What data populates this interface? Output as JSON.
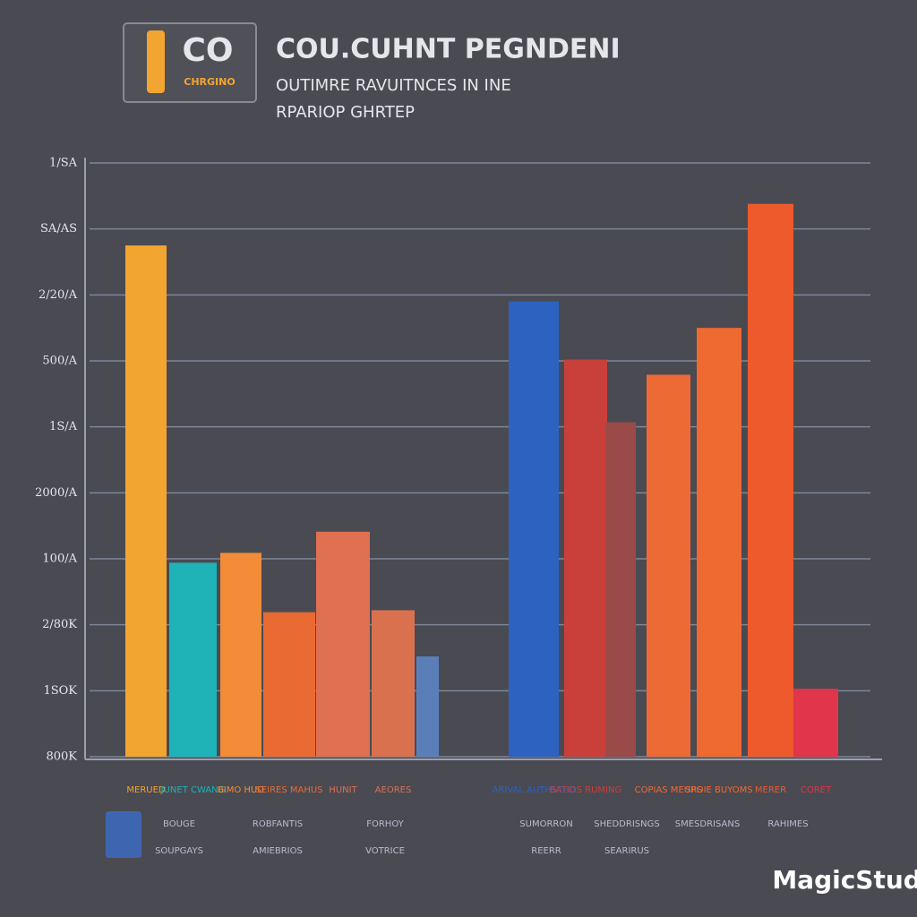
{
  "chart_data": {
    "type": "bar",
    "logo": {
      "mark": "CO",
      "text": "CHRGINO"
    },
    "title": "COU.CUHNT PEGNDENI",
    "subtitle": [
      "OUTIMRE RAVUITNCES IN INE",
      "RPARIOP GHRTEP"
    ],
    "categories": [
      "MERUED",
      "JUNET CWANG",
      "BIMO HUO",
      "SEIRES MAHUS",
      "HUNIT",
      "AEORES",
      null,
      "ARIVAL AUTHSTED",
      "BATIOS RUMING",
      null,
      "COPIAS MEURS",
      "SPOIE BUYOMS",
      "MERER",
      "CORET"
    ],
    "values": [
      7.75,
      2.94,
      3.09,
      2.19,
      3.41,
      2.22,
      1.52,
      6.9,
      6.02,
      5.07,
      5.79,
      6.5,
      8.38,
      1.03
    ],
    "colors": [
      "#f2a530",
      "#1fb3b8",
      "#f28c38",
      "#ea6a34",
      "#e07052",
      "#d9714f",
      "#5a7fb8",
      "#2e62c0",
      "#c9403a",
      "#9a4a48",
      "#ee6a35",
      "#ef6a30",
      "#ee5a2c",
      "#e0354a"
    ],
    "ylim": [
      0,
      9
    ],
    "yticks": [
      {
        "value": 0,
        "label": "800K"
      },
      {
        "value": 1,
        "label": "1SOK"
      },
      {
        "value": 2,
        "label": "2/80K"
      },
      {
        "value": 3,
        "label": "100/A"
      },
      {
        "value": 4,
        "label": "2000/A"
      },
      {
        "value": 5,
        "label": "1S/A"
      },
      {
        "value": 6,
        "label": "500/A"
      },
      {
        "value": 7,
        "label": "2/20/A"
      },
      {
        "value": 8,
        "label": "SA/AS"
      },
      {
        "value": 9,
        "label": "1/SA"
      }
    ],
    "grid": true,
    "notes": [
      "BOUGE",
      "ROBFANTIS",
      "FORHOY",
      "SUMORRON",
      "SHEDDRISNGS",
      "SMESDRISANS",
      "RAHIMES",
      "SOUPGAYS",
      "AMIEBRIOS",
      "VOTRICE",
      "REERR",
      "SEARIRUS"
    ],
    "watermark": "MagicStudio"
  }
}
